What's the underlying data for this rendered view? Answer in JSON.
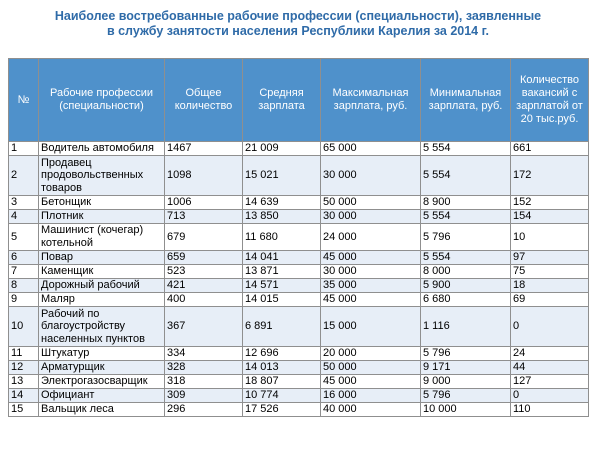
{
  "title": {
    "line1": "Наиболее востребованные рабочие профессии (специальности), заявленные",
    "line2": "в службу занятости населения Республики Карелия за 2014 г."
  },
  "columns": {
    "num": "№",
    "profession": "Рабочие профессии (специальности)",
    "total": "Общее количество",
    "avg_salary": "Средняя зарплата",
    "max_salary": "Максимальная зарплата, руб.",
    "min_salary": "Минимальная зарплата, руб.",
    "vacancies_20k": "Количество вакансий с зарплатой от 20 тыс.руб."
  },
  "rows": [
    {
      "num": "1",
      "profession": "Водитель автомобиля",
      "total": "1467",
      "avg": "21 009",
      "max": "65 000",
      "min": "5 554",
      "v20": "661"
    },
    {
      "num": "2",
      "profession": "Продавец продовольственных товаров",
      "total": "1098",
      "avg": "15 021",
      "max": "30 000",
      "min": "5 554",
      "v20": "172"
    },
    {
      "num": "3",
      "profession": "Бетонщик",
      "total": "1006",
      "avg": "14 639",
      "max": "50 000",
      "min": "8 900",
      "v20": "152"
    },
    {
      "num": "4",
      "profession": "Плотник",
      "total": "713",
      "avg": "13 850",
      "max": "30 000",
      "min": "5 554",
      "v20": "154"
    },
    {
      "num": "5",
      "profession": "Машинист (кочегар) котельной",
      "total": "679",
      "avg": "11 680",
      "max": "24 000",
      "min": "5 796",
      "v20": "10"
    },
    {
      "num": "6",
      "profession": "Повар",
      "total": "659",
      "avg": "14 041",
      "max": "45 000",
      "min": "5 554",
      "v20": "97"
    },
    {
      "num": "7",
      "profession": "Каменщик",
      "total": "523",
      "avg": "13 871",
      "max": "30 000",
      "min": "8 000",
      "v20": "75"
    },
    {
      "num": "8",
      "profession": "Дорожный рабочий",
      "total": "421",
      "avg": "14 571",
      "max": "35 000",
      "min": "5 900",
      "v20": "18"
    },
    {
      "num": "9",
      "profession": "Маляр",
      "total": "400",
      "avg": "14 015",
      "max": "45 000",
      "min": "6 680",
      "v20": "69"
    },
    {
      "num": "10",
      "profession": "Рабочий по благоустройству населенных пунктов",
      "total": "367",
      "avg": "6 891",
      "max": "15 000",
      "min": "1 116",
      "v20": "0"
    },
    {
      "num": "11",
      "profession": "Штукатур",
      "total": "334",
      "avg": "12 696",
      "max": "20 000",
      "min": "5 796",
      "v20": "24"
    },
    {
      "num": "12",
      "profession": "Арматурщик",
      "total": "328",
      "avg": "14 013",
      "max": "50 000",
      "min": "9 171",
      "v20": "44"
    },
    {
      "num": "13",
      "profession": "Электрогазосварщик",
      "total": "318",
      "avg": "18 807",
      "max": "45 000",
      "min": "9 000",
      "v20": "127"
    },
    {
      "num": "14",
      "profession": "Официант",
      "total": "309",
      "avg": "10 774",
      "max": "16 000",
      "min": "5 796",
      "v20": "0"
    },
    {
      "num": "15",
      "profession": "Вальщик леса",
      "total": "296",
      "avg": "17 526",
      "max": "40 000",
      "min": "10 000",
      "v20": "110"
    }
  ]
}
